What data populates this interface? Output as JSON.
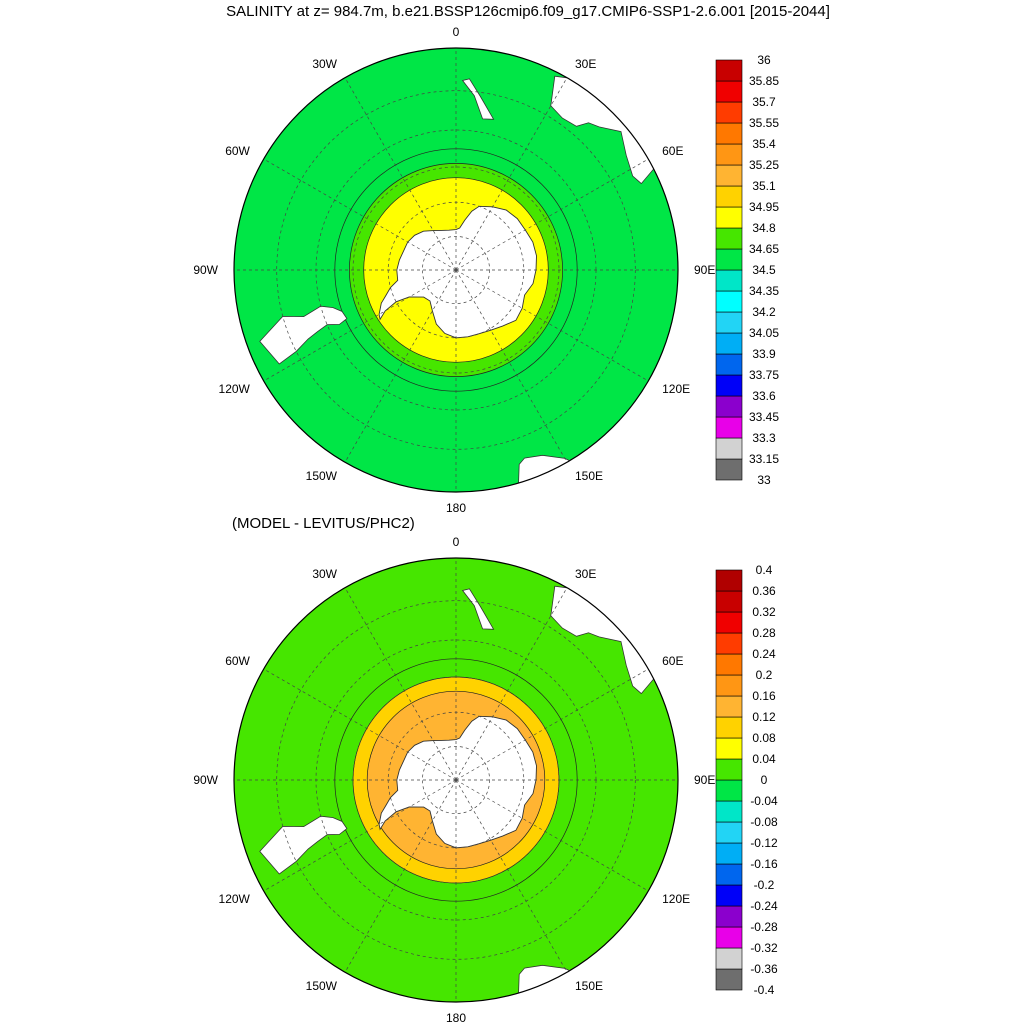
{
  "chart_data": [
    {
      "type": "heatmap",
      "projection": "south-polar-stereographic",
      "title": "SALINITY at z= 984.7m, b.e21.BSSP126cmip6.f09_g17.CMIP6-SSP1-2.6.001 [2015-2044]",
      "longitude_labels": [
        "0",
        "30E",
        "60E",
        "90E",
        "120E",
        "150E",
        "180",
        "150W",
        "120W",
        "90W",
        "60W",
        "30W"
      ],
      "colorbar": {
        "levels": [
          "33",
          "33.15",
          "33.3",
          "33.45",
          "33.6",
          "33.75",
          "33.9",
          "34.05",
          "34.2",
          "34.35",
          "34.5",
          "34.65",
          "34.8",
          "34.95",
          "35.1",
          "35.25",
          "35.4",
          "35.55",
          "35.7",
          "35.85",
          "36"
        ],
        "colors": [
          "#6e6e6e",
          "#d2d2d2",
          "#e800e8",
          "#8b00cd",
          "#0000f8",
          "#0066ee",
          "#00aef5",
          "#22d4f5",
          "#00ffff",
          "#00e6c8",
          "#00e646",
          "#46e600",
          "#ffff00",
          "#ffd200",
          "#ffb432",
          "#ff9614",
          "#ff7800",
          "#ff3c00",
          "#f00000",
          "#c80000"
        ]
      },
      "zones": [
        {
          "lat": -55,
          "value": 34.55
        },
        {
          "lat": -59,
          "value": 34.7
        },
        {
          "lat": -63,
          "value": 34.85
        }
      ]
    },
    {
      "type": "heatmap",
      "projection": "south-polar-stereographic",
      "title": "(MODEL - LEVITUS/PHC2)",
      "longitude_labels": [
        "0",
        "30E",
        "60E",
        "90E",
        "120E",
        "150E",
        "180",
        "150W",
        "120W",
        "90W",
        "60W",
        "30W"
      ],
      "colorbar": {
        "levels": [
          "-0.4",
          "-0.36",
          "-0.32",
          "-0.28",
          "-0.24",
          "-0.2",
          "-0.16",
          "-0.12",
          "-0.08",
          "-0.04",
          "0",
          "0.04",
          "0.08",
          "0.12",
          "0.16",
          "0.2",
          "0.24",
          "0.28",
          "0.32",
          "0.36",
          "0.4"
        ],
        "colors": [
          "#6e6e6e",
          "#d2d2d2",
          "#e800e8",
          "#8b00cd",
          "#0000f8",
          "#0066ee",
          "#00aef5",
          "#22d4f5",
          "#00e6c8",
          "#00e646",
          "#46e600",
          "#ffff00",
          "#ffd200",
          "#ffb432",
          "#ff9614",
          "#ff7800",
          "#ff3c00",
          "#f00000",
          "#c80000",
          "#b00000"
        ]
      },
      "zones": [
        {
          "lat": -55,
          "value": 0.02
        },
        {
          "lat": -60,
          "value": 0.1
        },
        {
          "lat": -64,
          "value": 0.15
        }
      ]
    }
  ]
}
